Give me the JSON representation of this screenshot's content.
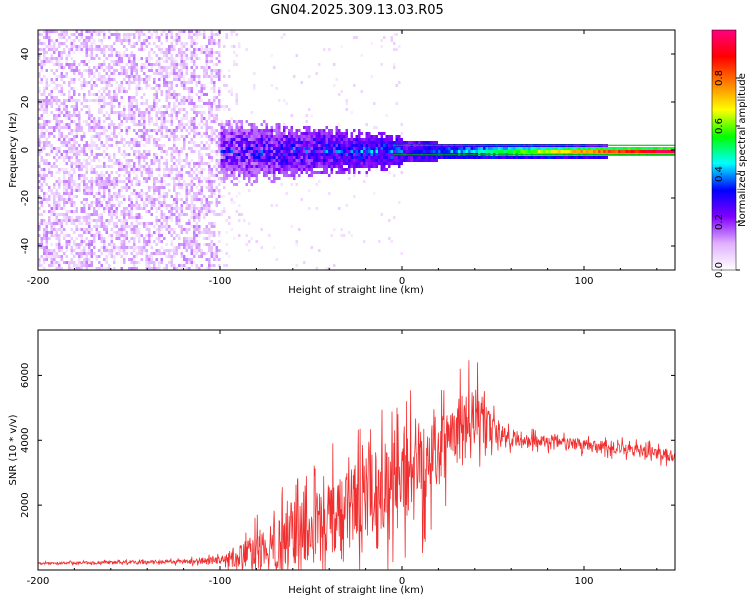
{
  "title": "GN04.2025.309.13.03.R05",
  "colors": {
    "background": "#ffffff",
    "axis": "#000000",
    "snr_line": "#f03030",
    "tracking_line": "#00aa00"
  },
  "chart_data": [
    {
      "type": "heatmap",
      "title": "GN04.2025.309.13.03.R05",
      "xlabel": "Height of straight line (km)",
      "ylabel": "Frequency (Hz)",
      "xlim": [
        -200,
        150
      ],
      "ylim": [
        -50,
        50
      ],
      "xticks": [
        -200,
        -100,
        0,
        100
      ],
      "yticks": [
        -40,
        -20,
        0,
        20,
        40
      ],
      "tick_labels_x": [
        "-200",
        "-100",
        "0",
        "100"
      ],
      "tick_labels_y": [
        "-40",
        "-20",
        "0",
        "20",
        "40"
      ],
      "colorbar": {
        "label": "Normalized spectral amplitude",
        "range": [
          0,
          1
        ],
        "ticks": [
          0.0,
          0.2,
          0.4,
          0.6,
          0.8
        ],
        "tick_labels": [
          "0.0",
          "0.2",
          "0.4",
          "0.6",
          "0.8"
        ],
        "colormap": [
          "#ffffff",
          "#e0b0ff",
          "#8000ff",
          "#0000ff",
          "#00ffff",
          "#00ff00",
          "#ffff00",
          "#ff8000",
          "#ff0000",
          "#ff0080"
        ]
      },
      "regions": [
        {
          "name": "noise",
          "x_range": [
            -200,
            -100
          ],
          "freq_range": [
            -50,
            50
          ],
          "amplitude": 0.05
        },
        {
          "name": "transition",
          "x_range": [
            -100,
            0
          ],
          "freq_halfwidth": [
            12,
            6
          ],
          "amplitude": [
            0.15,
            0.3
          ]
        },
        {
          "name": "stable",
          "x_range": [
            0,
            150
          ],
          "freq_halfwidth": [
            4,
            2
          ],
          "amplitude": [
            0.3,
            0.95
          ]
        }
      ],
      "tracking_lines_hz": [
        -2,
        2
      ]
    },
    {
      "type": "line",
      "xlabel": "Height of straight line (km)",
      "ylabel": "SNR (10 * v/v)",
      "xlim": [
        -200,
        150
      ],
      "ylim": [
        0,
        7400
      ],
      "xticks": [
        -200,
        -100,
        0,
        100
      ],
      "yticks": [
        2000,
        4000,
        6000
      ],
      "tick_labels_x": [
        "-200",
        "-100",
        "0",
        "100"
      ],
      "tick_labels_y": [
        "2000",
        "4000",
        "6000"
      ],
      "series": [
        {
          "name": "SNR",
          "x": [
            -200,
            -180,
            -160,
            -140,
            -120,
            -100,
            -90,
            -80,
            -70,
            -60,
            -50,
            -40,
            -30,
            -20,
            -10,
            0,
            10,
            20,
            30,
            40,
            50,
            60,
            70,
            80,
            90,
            100,
            110,
            120,
            130,
            140,
            150
          ],
          "values": [
            200,
            220,
            230,
            240,
            260,
            300,
            400,
            600,
            800,
            1000,
            1200,
            1500,
            1800,
            2100,
            2500,
            3000,
            3400,
            3800,
            4300,
            4800,
            4300,
            4100,
            4000,
            3950,
            3900,
            3850,
            3800,
            3750,
            3700,
            3600,
            3500
          ],
          "noise_amplitude": [
            50,
            60,
            70,
            80,
            100,
            200,
            600,
            900,
            1300,
            1600,
            1800,
            2000,
            2200,
            2300,
            2300,
            2400,
            2500,
            2000,
            1800,
            1600,
            700,
            450,
            350,
            300,
            300,
            300,
            300,
            300,
            300,
            300,
            300
          ]
        }
      ]
    }
  ]
}
